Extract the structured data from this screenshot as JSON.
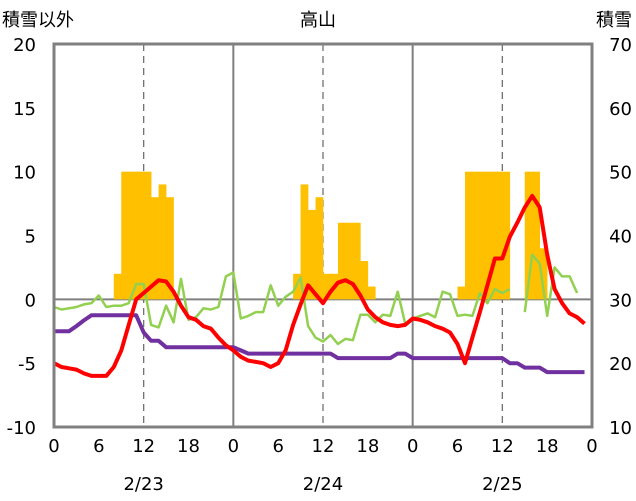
{
  "chart_data": {
    "type": "bar+line",
    "title": "高山",
    "ylabel_left": "積雪以外",
    "ylabel_right": "積雪",
    "ylim_left": [
      -10,
      20
    ],
    "ylim_right": [
      10,
      70
    ],
    "yticks_left": [
      "-10",
      "-5",
      "0",
      "5",
      "10",
      "15",
      "20"
    ],
    "yticks_right": [
      "10",
      "20",
      "30",
      "40",
      "50",
      "60",
      "70"
    ],
    "x_range": [
      0,
      72
    ],
    "xticks": [
      "0",
      "6",
      "12",
      "18",
      "0",
      "6",
      "12",
      "18",
      "0",
      "6",
      "12",
      "18",
      "0"
    ],
    "day_labels": [
      "2/23",
      "2/24",
      "2/25"
    ],
    "grid": "vertical dashed at 12h, solid at day boundaries",
    "colors": {
      "precip_bar": "#FFC000",
      "temperature": "#FF0000",
      "snow_depth": "#7030A0",
      "wind": "#92D050"
    },
    "precip_bars": [
      {
        "x": 8.5,
        "y": 2
      },
      {
        "x": 9.5,
        "y": 10
      },
      {
        "x": 10.5,
        "y": 10
      },
      {
        "x": 11.5,
        "y": 10
      },
      {
        "x": 12.5,
        "y": 10
      },
      {
        "x": 13.5,
        "y": 8
      },
      {
        "x": 14.5,
        "y": 9
      },
      {
        "x": 15.5,
        "y": 8
      },
      {
        "x": 32.5,
        "y": 2
      },
      {
        "x": 33.5,
        "y": 9
      },
      {
        "x": 34.5,
        "y": 7
      },
      {
        "x": 35.5,
        "y": 8
      },
      {
        "x": 36.5,
        "y": 2
      },
      {
        "x": 37.5,
        "y": 2
      },
      {
        "x": 38.5,
        "y": 6
      },
      {
        "x": 39.5,
        "y": 6
      },
      {
        "x": 40.5,
        "y": 6
      },
      {
        "x": 41.5,
        "y": 3
      },
      {
        "x": 42.5,
        "y": 1
      },
      {
        "x": 54.5,
        "y": 1
      },
      {
        "x": 55.5,
        "y": 10
      },
      {
        "x": 56.5,
        "y": 10
      },
      {
        "x": 57.5,
        "y": 10
      },
      {
        "x": 58.5,
        "y": 10
      },
      {
        "x": 59.5,
        "y": 10
      },
      {
        "x": 60.5,
        "y": 10
      },
      {
        "x": 63.5,
        "y": 10
      },
      {
        "x": 64.5,
        "y": 10
      },
      {
        "x": 65.5,
        "y": 4
      }
    ],
    "temperature": [
      [
        0,
        -5
      ],
      [
        1,
        -5.3
      ],
      [
        2,
        -5.4
      ],
      [
        3,
        -5.5
      ],
      [
        4,
        -5.8
      ],
      [
        5,
        -6
      ],
      [
        6,
        -6
      ],
      [
        7,
        -6
      ],
      [
        8,
        -5.3
      ],
      [
        9,
        -4
      ],
      [
        10,
        -2
      ],
      [
        11,
        0
      ],
      [
        12,
        0.5
      ],
      [
        13,
        1
      ],
      [
        14,
        1.5
      ],
      [
        15,
        1.4
      ],
      [
        16,
        0.6
      ],
      [
        17,
        -0.5
      ],
      [
        18,
        -1.4
      ],
      [
        19,
        -1.6
      ],
      [
        20,
        -2.1
      ],
      [
        21,
        -2.3
      ],
      [
        22,
        -3
      ],
      [
        23,
        -3.6
      ],
      [
        24,
        -4
      ],
      [
        25,
        -4.5
      ],
      [
        26,
        -4.8
      ],
      [
        27,
        -4.9
      ],
      [
        28,
        -5
      ],
      [
        29,
        -5.3
      ],
      [
        30,
        -5
      ],
      [
        31,
        -4
      ],
      [
        32,
        -2
      ],
      [
        33,
        -0.4
      ],
      [
        34,
        1.1
      ],
      [
        35,
        0.4
      ],
      [
        36,
        -0.3
      ],
      [
        37,
        0.6
      ],
      [
        38,
        1.3
      ],
      [
        39,
        1.5
      ],
      [
        40,
        1.2
      ],
      [
        41,
        0.3
      ],
      [
        42,
        -0.8
      ],
      [
        43,
        -1.4
      ],
      [
        44,
        -1.8
      ],
      [
        45,
        -2
      ],
      [
        46,
        -2.1
      ],
      [
        47,
        -2
      ],
      [
        48,
        -1.5
      ],
      [
        49,
        -1.6
      ],
      [
        50,
        -1.8
      ],
      [
        51,
        -2.1
      ],
      [
        52,
        -2.3
      ],
      [
        53,
        -2.6
      ],
      [
        54,
        -3.5
      ],
      [
        55,
        -5
      ],
      [
        56,
        -3
      ],
      [
        57,
        -1
      ],
      [
        58,
        1.1
      ],
      [
        59,
        3.2
      ],
      [
        60,
        3.2
      ],
      [
        61,
        4.9
      ],
      [
        62,
        6
      ],
      [
        63,
        7.2
      ],
      [
        64,
        8.1
      ],
      [
        65,
        7.2
      ],
      [
        66,
        3.5
      ],
      [
        67,
        0.8
      ],
      [
        68,
        -0.3
      ],
      [
        69,
        -1.1
      ],
      [
        70,
        -1.4
      ],
      [
        71,
        -1.9
      ]
    ],
    "wind": [
      [
        [
          0,
          -0.6
        ],
        [
          1,
          -0.8
        ],
        [
          2,
          -0.7
        ],
        [
          3,
          -0.6
        ],
        [
          4,
          -0.4
        ],
        [
          5,
          -0.3
        ],
        [
          6,
          0.3
        ],
        [
          7,
          -0.6
        ],
        [
          8,
          -0.5
        ],
        [
          9,
          -0.5
        ],
        [
          10,
          -0.3
        ],
        [
          11,
          1.2
        ],
        [
          12,
          1.2
        ],
        [
          13,
          -2
        ],
        [
          14,
          -2.2
        ],
        [
          15,
          -0.5
        ],
        [
          16,
          -1.8
        ],
        [
          17,
          1.6
        ],
        [
          18,
          -1.6
        ],
        [
          19,
          -1.4
        ],
        [
          20,
          -0.7
        ],
        [
          21,
          -0.8
        ],
        [
          22,
          -0.6
        ],
        [
          23,
          1.8
        ],
        [
          24,
          2.1
        ],
        [
          25,
          -1.5
        ],
        [
          26,
          -1.3
        ],
        [
          27,
          -1
        ],
        [
          28,
          -1
        ],
        [
          29,
          1.1
        ],
        [
          30,
          -0.5
        ],
        [
          31,
          0.2
        ],
        [
          32,
          0.6
        ],
        [
          33,
          1.7
        ],
        [
          34,
          -2.1
        ],
        [
          35,
          -3
        ],
        [
          36,
          -3.3
        ],
        [
          37,
          -2.8
        ],
        [
          38,
          -3.5
        ],
        [
          39,
          -3.1
        ],
        [
          40,
          -3.2
        ],
        [
          41,
          -1.2
        ],
        [
          42,
          -1.2
        ],
        [
          43,
          -1.8
        ],
        [
          44,
          -1.2
        ],
        [
          45,
          -1.3
        ],
        [
          46,
          0.6
        ],
        [
          47,
          -1.9
        ],
        [
          48,
          -1.5
        ],
        [
          49,
          -1.3
        ],
        [
          50,
          -1.1
        ],
        [
          51,
          -1.4
        ],
        [
          52,
          0.6
        ],
        [
          53,
          0.4
        ],
        [
          54,
          -1.3
        ],
        [
          55,
          -1.2
        ],
        [
          56,
          -1.3
        ],
        [
          57,
          0.5
        ],
        [
          58,
          -0.3
        ],
        [
          59,
          0.8
        ],
        [
          60,
          0.5
        ],
        [
          61,
          0.8
        ]
      ],
      [
        [
          63,
          -1
        ],
        [
          64,
          3.5
        ],
        [
          65,
          2.8
        ],
        [
          66,
          -1.3
        ],
        [
          67,
          2.5
        ],
        [
          68,
          1.8
        ],
        [
          69,
          1.8
        ],
        [
          70,
          0.5
        ]
      ]
    ],
    "snow_depth": [
      [
        0,
        25
      ],
      [
        2,
        25
      ],
      [
        3,
        25.8
      ],
      [
        4,
        26.7
      ],
      [
        5,
        27.5
      ],
      [
        6,
        27.5
      ],
      [
        11,
        27.5
      ],
      [
        12,
        24.8
      ],
      [
        13,
        23.5
      ],
      [
        14,
        23.5
      ],
      [
        15,
        22.5
      ],
      [
        23,
        22.5
      ],
      [
        24,
        22.5
      ],
      [
        25,
        22
      ],
      [
        26,
        21.5
      ],
      [
        37,
        21.5
      ],
      [
        38,
        20.8
      ],
      [
        45,
        20.8
      ],
      [
        46,
        21.5
      ],
      [
        47,
        21.5
      ],
      [
        48,
        20.8
      ],
      [
        60,
        20.8
      ],
      [
        61,
        20
      ],
      [
        62,
        20
      ],
      [
        63,
        19.3
      ],
      [
        65,
        19.3
      ],
      [
        66,
        18.6
      ],
      [
        71,
        18.6
      ]
    ]
  }
}
